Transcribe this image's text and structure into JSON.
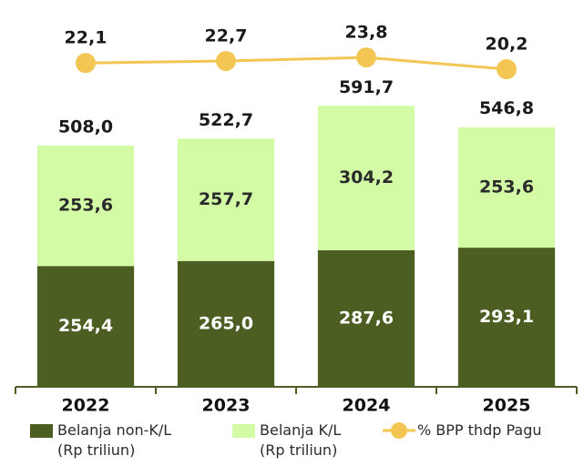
{
  "chart_data": {
    "type": "bar",
    "stacked": true,
    "categories": [
      "2022",
      "2023",
      "2024",
      "2025"
    ],
    "series": [
      {
        "name": "Belanja non-K/L\n(Rp triliun)",
        "color": "#4d5e22",
        "label_color": "#ffffff",
        "values": [
          254.4,
          265.0,
          287.6,
          293.1
        ],
        "value_labels": [
          "254,4",
          "265,0",
          "287,6",
          "293,1"
        ]
      },
      {
        "name": "Belanja K/L\n(Rp triliun)",
        "color": "#d3fba6",
        "label_color": "#2b2b2b",
        "values": [
          253.6,
          257.7,
          304.2,
          253.6
        ],
        "value_labels": [
          "253,6",
          "257,7",
          "304,2",
          "253,6"
        ]
      },
      {
        "name": "% BPP thdp Pagu",
        "type": "line",
        "axis": "y2",
        "color": "#f3c654",
        "label_color": "#1a1a1a",
        "values": [
          22.1,
          22.7,
          23.8,
          20.2
        ],
        "value_labels": [
          "22,1",
          "22,7",
          "23,8",
          "20,2"
        ]
      }
    ],
    "totals": {
      "values": [
        508.0,
        522.7,
        591.7,
        546.8
      ],
      "value_labels": [
        "508,0",
        "522,7",
        "591,7",
        "546,8"
      ]
    },
    "ylim": [
      0,
      760
    ],
    "y2lim": [
      -76.7,
      33.4
    ]
  }
}
